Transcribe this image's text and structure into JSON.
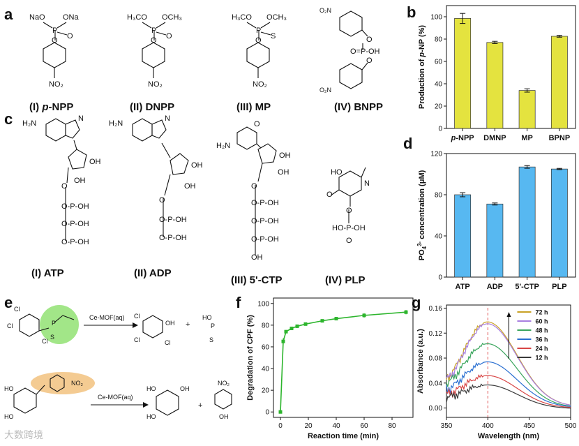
{
  "panels": {
    "a": {
      "label": "a",
      "structures": [
        {
          "caption_roman": "(I) ",
          "caption_name": "p-NPP",
          "top": "NaO  ONa",
          "ring": "NO2"
        },
        {
          "caption_roman": "(II) ",
          "caption_name": "DNPP",
          "top": "H3CO  OCH3",
          "ring": "NO2"
        },
        {
          "caption_roman": "(III) ",
          "caption_name": "MP",
          "top": "H3CO  OCH3",
          "ring": "NO2"
        },
        {
          "caption_roman": "(IV) ",
          "caption_name": "BNPP",
          "top": "",
          "ring": "NO2"
        }
      ]
    },
    "c": {
      "label": "c",
      "structures": [
        {
          "caption": "(I) ATP"
        },
        {
          "caption": "(II) ADP"
        },
        {
          "caption": "(III) 5'-CTP"
        },
        {
          "caption": "(IV) PLP"
        }
      ]
    },
    "e": {
      "label": "e",
      "reaction_label": "Ce-MOF(aq)",
      "reaction2_label": "Ce-MOF(aq)",
      "plus": "+"
    },
    "watermark": "大数跨境"
  },
  "chart_data": [
    {
      "panel": "b",
      "type": "bar",
      "categories": [
        "p-NPP",
        "DMNP",
        "MP",
        "BPNP"
      ],
      "values": [
        98.5,
        77,
        34,
        82.5
      ],
      "errors": [
        4.5,
        1,
        1.5,
        0.8
      ],
      "ylabel": "Production of p-NP (%)",
      "ylim": [
        0,
        110
      ],
      "yticks": [
        0,
        20,
        40,
        60,
        80,
        100
      ],
      "color": "#e4e33f"
    },
    {
      "panel": "d",
      "type": "bar",
      "categories": [
        "ATP",
        "ADP",
        "5'-CTP",
        "PLP"
      ],
      "values": [
        80,
        71,
        107,
        105
      ],
      "errors": [
        2,
        1,
        1.3,
        0.6
      ],
      "ylabel": "PO4 3- concentration (μM)",
      "ylim": [
        0,
        120
      ],
      "yticks": [
        0,
        40,
        80,
        120
      ],
      "color": "#57b8f1"
    },
    {
      "panel": "f",
      "type": "line",
      "x": [
        0,
        2,
        4,
        8,
        12,
        18,
        30,
        40,
        60,
        90
      ],
      "y": [
        0,
        65,
        74,
        77,
        79,
        81,
        84,
        86,
        89,
        92
      ],
      "errors": [
        0,
        3,
        1.5,
        1,
        1,
        1,
        1,
        1,
        2,
        2
      ],
      "xlabel": "Reaction time (min)",
      "ylabel": "Degradation of CPF (%)",
      "xlim": [
        -5,
        95
      ],
      "ylim": [
        -5,
        105
      ],
      "xticks": [
        0,
        20,
        40,
        60,
        80
      ],
      "yticks": [
        0,
        20,
        40,
        60,
        80,
        100
      ],
      "color": "#2db52d"
    },
    {
      "panel": "g",
      "type": "line",
      "xlabel": "Wavelength (nm)",
      "ylabel": "Absorbance (a.u.)",
      "xlim": [
        350,
        500
      ],
      "ylim": [
        -0.015,
        0.165
      ],
      "xticks": [
        350,
        400,
        450,
        500
      ],
      "yticks": [
        0.0,
        0.04,
        0.08,
        0.12,
        0.16
      ],
      "ytick_labels": [
        "0.00",
        "0.04",
        "0.08",
        "0.12",
        "0.16"
      ],
      "vline_x": 400,
      "peak_x": 400,
      "series": [
        {
          "name": "72 h",
          "color": "#c9a227",
          "peak": 0.138,
          "base": 0.048,
          "end": 0.002
        },
        {
          "name": "60 h",
          "color": "#a97fe0",
          "peak": 0.135,
          "base": 0.046,
          "end": 0.002
        },
        {
          "name": "48 h",
          "color": "#3aa55d",
          "peak": 0.103,
          "base": 0.04,
          "end": 0.001
        },
        {
          "name": "36 h",
          "color": "#2a6fd1",
          "peak": 0.074,
          "base": 0.03,
          "end": 0.001
        },
        {
          "name": "24 h",
          "color": "#d84545",
          "peak": 0.052,
          "base": 0.022,
          "end": 0.0
        },
        {
          "name": "12 h",
          "color": "#3a3a3a",
          "peak": 0.037,
          "base": 0.017,
          "end": -0.001
        }
      ]
    }
  ]
}
